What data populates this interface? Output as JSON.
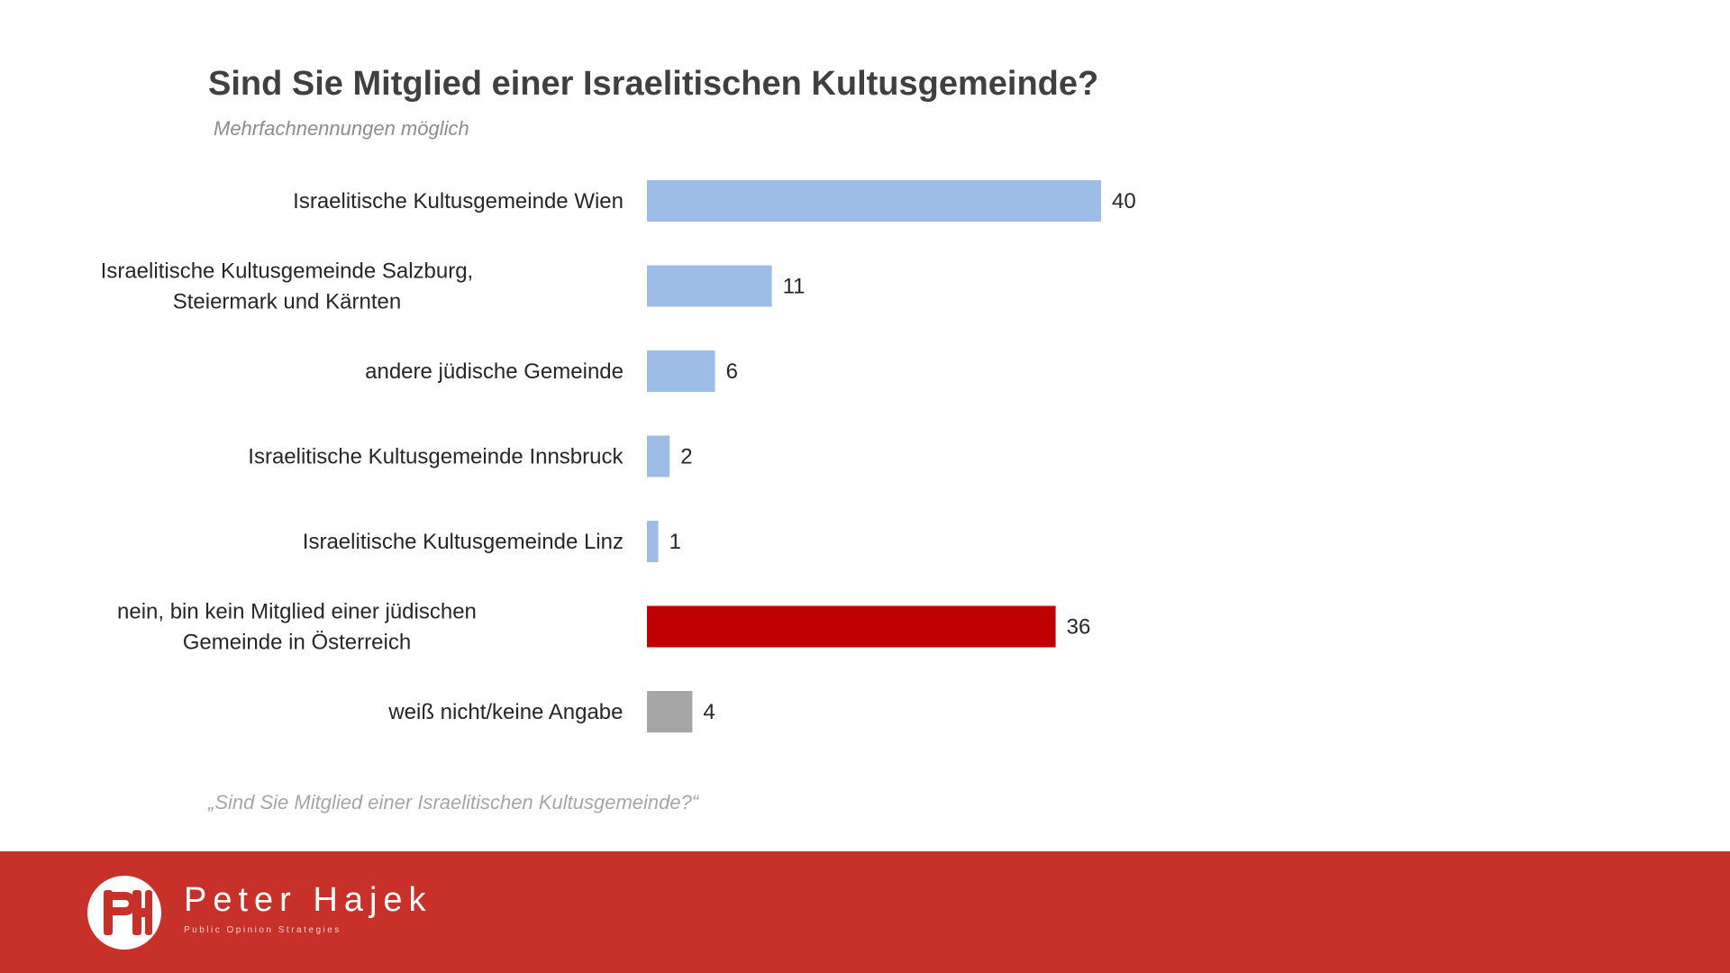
{
  "header": {
    "title": "Sind Sie Mitglied einer Israelitischen Kultusgemeinde?",
    "subtitle": "Mehrfachnennungen möglich"
  },
  "footnote": "„Sind Sie Mitglied einer Israelitischen Kultusgemeinde?“",
  "footer": {
    "brand_name": "Peter Hajek",
    "brand_tagline": "Public Opinion Strategies",
    "background_color": "#c8302a"
  },
  "chart_data": {
    "type": "bar",
    "orientation": "horizontal",
    "title": "Sind Sie Mitglied einer Israelitischen Kultusgemeinde?",
    "subtitle": "Mehrfachnennungen möglich",
    "categories": [
      [
        "Israelitische Kultusgemeinde Wien"
      ],
      [
        "Israelitische Kultusgemeinde Salzburg,",
        "Steiermark und Kärnten"
      ],
      [
        "andere jüdische Gemeinde"
      ],
      [
        "Israelitische Kultusgemeinde Innsbruck"
      ],
      [
        "Israelitische Kultusgemeinde Linz"
      ],
      [
        "nein, bin kein Mitglied einer jüdischen",
        "Gemeinde in Österreich"
      ],
      [
        "weiß nicht/keine Angabe"
      ]
    ],
    "values": [
      40,
      11,
      6,
      2,
      1,
      36,
      4
    ],
    "bar_colors": [
      "#9dbde6",
      "#9dbde6",
      "#9dbde6",
      "#9dbde6",
      "#9dbde6",
      "#c00000",
      "#a6a6a6"
    ],
    "data_labels": true,
    "xlim": [
      0,
      40
    ],
    "grid": false,
    "legend": "none"
  }
}
